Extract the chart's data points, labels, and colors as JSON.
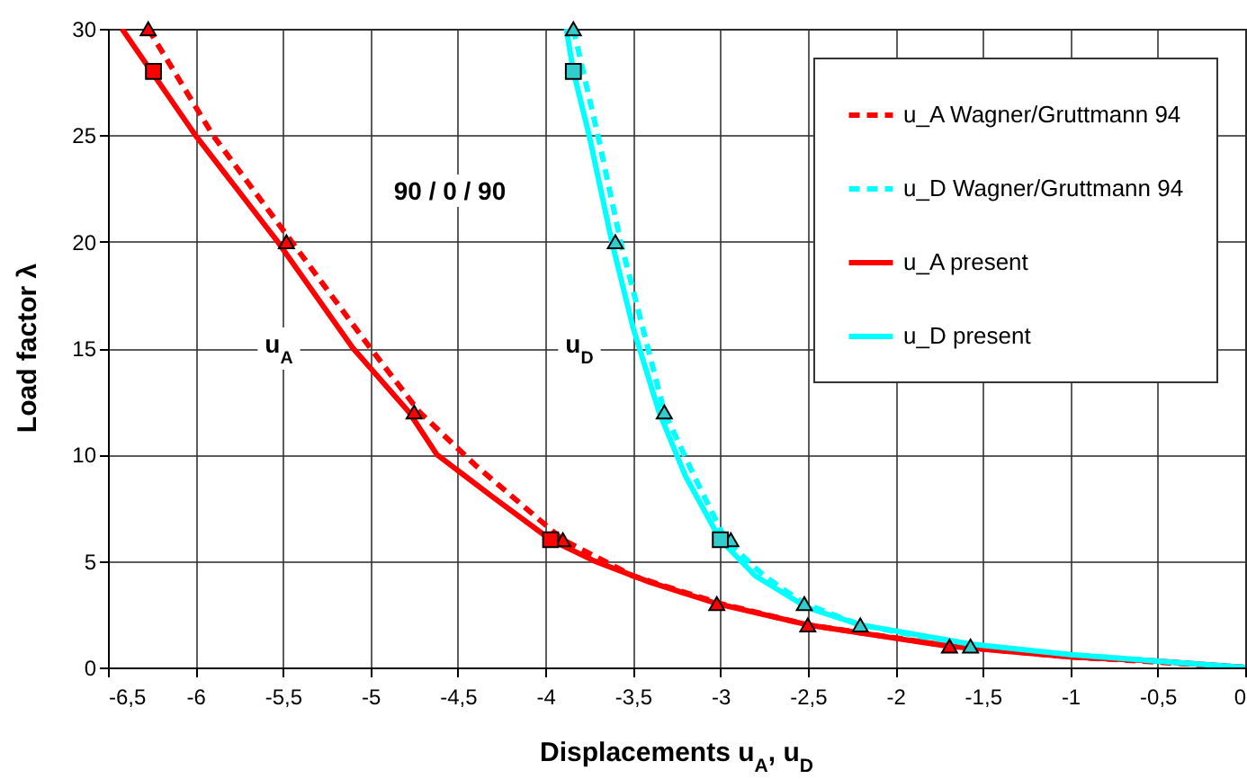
{
  "chart_data": {
    "type": "line",
    "xlabel": "Displacements  u$_{A}$, u$_{D}$",
    "ylabel": "Load  factor  λ",
    "xlim": [
      -6.5,
      0
    ],
    "ylim": [
      0,
      30
    ],
    "xticks": [
      {
        "value": -6.5,
        "label": "-6,5"
      },
      -6,
      {
        "value": -5.5,
        "label": "-5,5"
      },
      -5,
      {
        "value": -4.5,
        "label": "-4,5"
      },
      -4,
      {
        "value": -3.5,
        "label": "-3,5"
      },
      -3,
      {
        "value": -2.5,
        "label": "-2,5"
      },
      -2,
      {
        "value": -1.5,
        "label": "-1,5"
      },
      -1,
      {
        "value": -0.5,
        "label": "-0,5"
      },
      0
    ],
    "yticks": [
      0,
      5,
      10,
      15,
      20,
      25,
      30
    ],
    "grid": true,
    "legend": "top right",
    "annotations": [
      "90 / 0 / 90",
      "u$_{A}$",
      "u$_{D}$"
    ],
    "series": [
      {
        "name": "u_A Wagner/Gruttmann 94",
        "color": "#ff0000",
        "line_style": "dashed",
        "x": [
          -6.27,
          -5.9,
          -5.45,
          -5.0,
          -4.72,
          -4.4,
          -3.9,
          -3.5,
          -3.0,
          -2.5,
          -1.68,
          -1.0,
          0
        ],
        "values": [
          30,
          25,
          20,
          15,
          12,
          9.5,
          6,
          4.3,
          3,
          2,
          1,
          0.5,
          0
        ]
      },
      {
        "name": "u_D Wagner/Gruttmann 94",
        "color": "#00ffff",
        "line_style": "dashed",
        "x": [
          -3.84,
          -3.7,
          -3.57,
          -3.32,
          -3.15,
          -2.97,
          -2.75,
          -2.52,
          -2.2,
          -1.57,
          -1.0,
          0
        ],
        "values": [
          30,
          25,
          20,
          12,
          9,
          6,
          4.3,
          3,
          2,
          1,
          0.6,
          0
        ]
      },
      {
        "name": "u_A present",
        "color": "#ff0000",
        "line_style": "solid",
        "x": [
          -6.42,
          -6.0,
          -5.53,
          -5.1,
          -4.78,
          -4.62,
          -4.3,
          -3.97,
          -3.72,
          -3.4,
          -3.02,
          -2.5,
          -1.7,
          -1.0,
          -0.5,
          0
        ],
        "values": [
          30,
          25,
          20,
          15,
          12,
          10,
          8,
          6,
          5,
          4,
          3,
          2,
          1,
          0.5,
          0.3,
          0
        ]
      },
      {
        "name": "u_D present",
        "color": "#00ffff",
        "line_style": "solid",
        "x": [
          -3.88,
          -3.84,
          -3.75,
          -3.62,
          -3.5,
          -3.35,
          -3.2,
          -3.0,
          -2.8,
          -2.5,
          -2.2,
          -1.57,
          -1.0,
          -0.5,
          0
        ],
        "values": [
          30,
          28,
          25,
          20,
          16,
          12,
          9,
          6,
          4.3,
          2.8,
          2,
          1.1,
          0.6,
          0.3,
          0
        ]
      },
      {
        "type": "scatter",
        "color": "#ff0000",
        "marker": "triangle",
        "x": [
          -6.27,
          -5.48,
          -4.75,
          -3.9,
          -3.02,
          -2.5,
          -1.69
        ],
        "values": [
          30,
          20,
          12,
          6,
          3,
          2,
          1
        ]
      },
      {
        "type": "scatter",
        "color": "#ff0000",
        "marker": "square",
        "x": [
          -6.24,
          -3.97
        ],
        "values": [
          28,
          6
        ]
      },
      {
        "type": "scatter",
        "color": "#33cccc",
        "marker": "triangle",
        "x": [
          -3.84,
          -3.6,
          -3.32,
          -2.94,
          -2.52,
          -2.2,
          -1.57
        ],
        "values": [
          30,
          20,
          12,
          6,
          3,
          2,
          1
        ]
      },
      {
        "type": "scatter",
        "color": "#33cccc",
        "marker": "square",
        "x": [
          -3.84,
          -3.0
        ],
        "values": [
          28,
          6
        ]
      }
    ]
  }
}
